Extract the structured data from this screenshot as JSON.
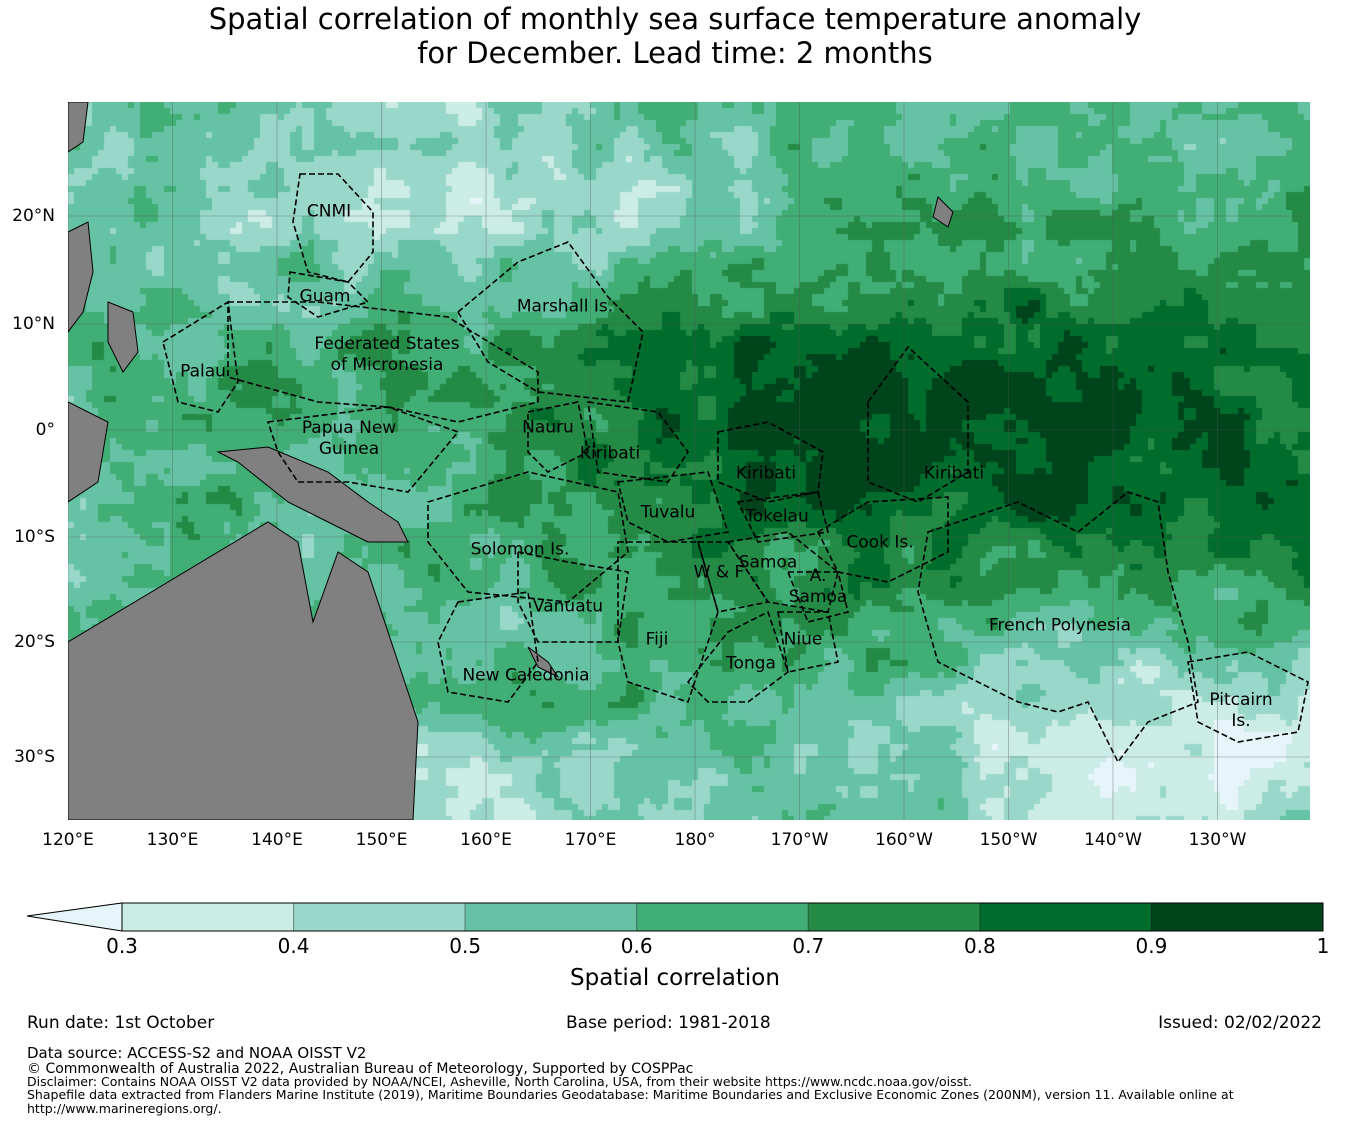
{
  "title_line1": "Spatial correlation of monthly sea surface temperature anomaly",
  "title_line2": "for December. Lead time: 2 months",
  "map": {
    "lat_ticks": [
      "20°N",
      "10°N",
      "0°",
      "10°S",
      "20°S",
      "30°S"
    ],
    "lon_ticks": [
      "120°E",
      "130°E",
      "140°E",
      "150°E",
      "160°E",
      "170°E",
      "180°",
      "170°W",
      "160°W",
      "150°W",
      "140°W",
      "130°W"
    ],
    "land_color": "#808080",
    "regions": [
      "CNMI",
      "Guam",
      "Marshall Is.",
      "Federated States\nof Micronesia",
      "Palau",
      "Papua New\nGuinea",
      "Nauru",
      "Kiribati",
      "Kiribati",
      "Kiribati",
      "Tuvalu",
      "Tokelau",
      "Cook Is.",
      "Solomon Is.",
      "Samoa",
      "W & F",
      "A.\nSamoa",
      "Vanuatu",
      "Fiji",
      "Niue",
      "Tonga",
      "New Caledonia",
      "French Polynesia",
      "Pitcairn\nIs."
    ]
  },
  "colorbar": {
    "label": "Spatial correlation",
    "ticks": [
      "0.3",
      "0.4",
      "0.5",
      "0.6",
      "0.7",
      "0.8",
      "0.9",
      "1"
    ],
    "under_color": "#e5f5f9",
    "colors": [
      "#ccece6",
      "#99d8c9",
      "#66c2a4",
      "#41ae76",
      "#238b45",
      "#006d2c",
      "#00441b"
    ]
  },
  "footer": {
    "run_date": "Run date: 1st October",
    "base_period": "Base period: 1981-2018",
    "issued": "Issued: 02/02/2022",
    "data_source": "Data source: ACCESS-S2 and NOAA OISST V2",
    "copyright": "© Commonwealth of Australia 2022, Australian Bureau of Meteorology, Supported by COSPPac",
    "disclaimer": "Disclaimer: Contains NOAA OISST V2 data provided by NOAA/NCEI, Asheville, North Carolina, USA, from their website https://www.ncdc.noaa.gov/oisst.",
    "shapefile_line1": "Shapefile data extracted from Flanders Marine Institute (2019), Maritime Boundaries Geodatabase: Maritime Boundaries and Exclusive Economic Zones (200NM), version 11. Available online at",
    "shapefile_line2": "http://www.marineregions.org/."
  }
}
